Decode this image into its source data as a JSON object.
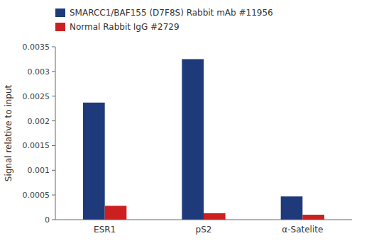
{
  "chart_data": {
    "type": "bar",
    "categories": [
      "ESR1",
      "pS2",
      "α-Satelite"
    ],
    "series": [
      {
        "name": "SMARCC1/BAF155 (D7F8S) Rabbit mAb #11956",
        "color": "#1f3a7a",
        "values": [
          0.00237,
          0.00325,
          0.00047
        ]
      },
      {
        "name": "Normal Rabbit IgG #2729",
        "color": "#cc2020",
        "values": [
          0.00028,
          0.00013,
          0.0001
        ]
      }
    ],
    "y_label": "Signal relative to input",
    "ylim": [
      0,
      0.0035
    ],
    "yticks": [
      0,
      0.0005,
      0.001,
      0.0015,
      0.002,
      0.0025,
      0.003,
      0.0035
    ],
    "grid": false,
    "legend": "top"
  }
}
